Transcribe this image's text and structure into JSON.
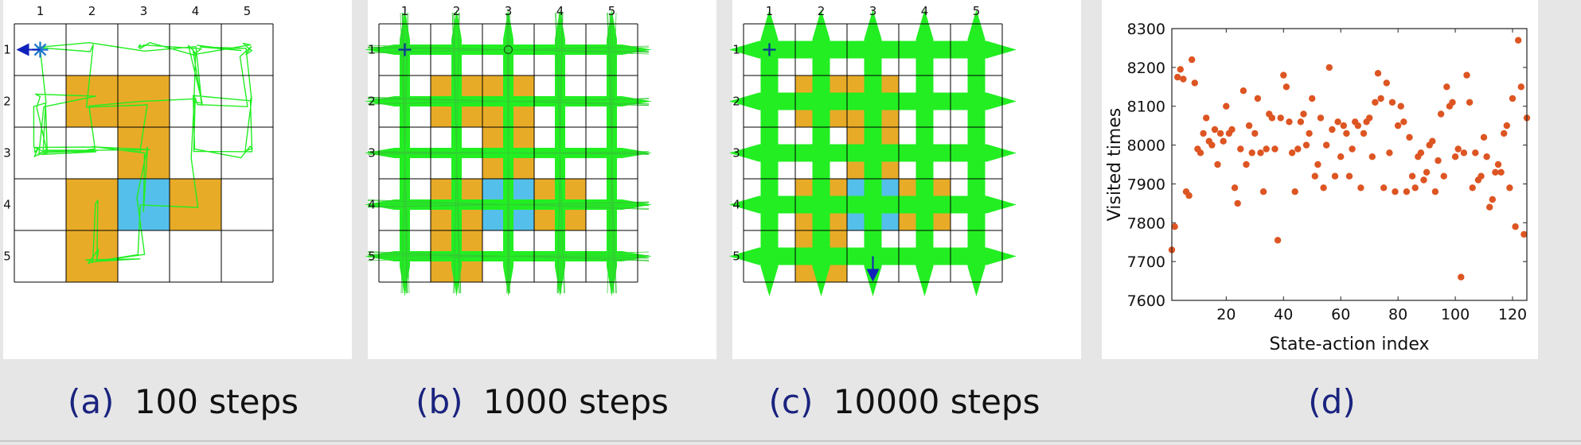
{
  "colors": {
    "page_bg": "#e6e6e6",
    "panel_bg": "#ffffff",
    "grid_line": "#000000",
    "forbidden_cell": "#e8ab27",
    "target_cell": "#55bfeb",
    "trajectory": "#22ee22",
    "marker": "#2277cc",
    "arrow": "#1122bb",
    "scatter_dot": "#dd5522",
    "caption_tag": "#1a237e",
    "caption_text": "#111111"
  },
  "grid": {
    "rows": 5,
    "cols": 5,
    "col_labels": [
      "1",
      "2",
      "3",
      "4",
      "5"
    ],
    "row_labels": [
      "1",
      "2",
      "3",
      "4",
      "5"
    ],
    "forbidden_cells": [
      [
        2,
        2
      ],
      [
        2,
        3
      ],
      [
        3,
        3
      ],
      [
        4,
        2
      ],
      [
        4,
        4
      ],
      [
        5,
        2
      ]
    ],
    "target_cells": [
      [
        4,
        3
      ]
    ]
  },
  "panels": [
    {
      "tag": "(a)",
      "label": "100 steps",
      "steps": 100,
      "start_cell": [
        1,
        1
      ],
      "start_marker": "asterisk-icon"
    },
    {
      "tag": "(b)",
      "label": "1000 steps",
      "steps": 1000,
      "start_cell": [
        1,
        1
      ],
      "start_marker": "plus-icon"
    },
    {
      "tag": "(c)",
      "label": "10000 steps",
      "steps": 10000,
      "start_cell": [
        1,
        1
      ],
      "start_marker": "plus-icon"
    },
    {
      "tag": "(d)",
      "label": ""
    }
  ],
  "chart_data": {
    "type": "scatter",
    "title": "",
    "xlabel": "State-action index",
    "ylabel": "Visited times",
    "xlim": [
      1,
      125
    ],
    "ylim": [
      7600,
      8300
    ],
    "xticks": [
      20,
      40,
      60,
      80,
      100,
      120
    ],
    "yticks": [
      7600,
      7700,
      7800,
      7900,
      8000,
      8100,
      8200,
      8300
    ],
    "grid": false,
    "legend": "none",
    "series": [
      {
        "x": [
          1,
          2,
          3,
          4,
          5,
          6,
          7,
          8,
          9,
          10,
          11,
          12,
          13,
          14,
          15,
          16,
          17,
          18,
          19,
          20,
          21,
          22,
          23,
          24,
          25,
          26,
          27,
          28,
          29,
          30,
          31,
          32,
          33,
          34,
          35,
          36,
          37,
          38,
          39,
          40,
          41,
          42,
          43,
          44,
          45,
          46,
          47,
          48,
          49,
          50,
          51,
          52,
          53,
          54,
          55,
          56,
          57,
          58,
          59,
          60,
          61,
          62,
          63,
          64,
          65,
          66,
          67,
          68,
          69,
          70,
          71,
          72,
          73,
          74,
          75,
          76,
          77,
          78,
          79,
          80,
          81,
          82,
          83,
          84,
          85,
          86,
          87,
          88,
          89,
          90,
          91,
          92,
          93,
          94,
          95,
          96,
          97,
          98,
          99,
          100,
          101,
          102,
          103,
          104,
          105,
          106,
          107,
          108,
          109,
          110,
          111,
          112,
          113,
          114,
          115,
          116,
          117,
          118,
          119,
          120,
          121,
          122,
          123,
          124,
          125
        ],
        "y": [
          7730,
          7790,
          8175,
          8195,
          8170,
          7880,
          7870,
          8220,
          8160,
          7990,
          7980,
          8030,
          8070,
          8010,
          8000,
          8040,
          7950,
          8030,
          8010,
          8100,
          8030,
          8040,
          7890,
          7850,
          7990,
          8140,
          7950,
          8050,
          7980,
          8030,
          8120,
          7980,
          7880,
          7990,
          8080,
          8070,
          7990,
          7755,
          8070,
          8180,
          8150,
          8060,
          7980,
          7880,
          7990,
          8060,
          8080,
          8000,
          8030,
          8120,
          7920,
          7950,
          8070,
          7890,
          8000,
          8200,
          8040,
          7920,
          8060,
          7970,
          8050,
          8030,
          7920,
          7990,
          8060,
          8050,
          7890,
          8030,
          8060,
          8070,
          7970,
          8110,
          8185,
          8120,
          7890,
          8160,
          7980,
          8110,
          7880,
          8050,
          8100,
          8060,
          7880,
          8020,
          7920,
          7890,
          7970,
          7980,
          7910,
          7930,
          8000,
          8010,
          7880,
          7960,
          8080,
          7920,
          8150,
          8100,
          8110,
          7970,
          7990,
          7660,
          7980,
          8180,
          8110,
          7890,
          7980,
          7910,
          7920,
          8020,
          7970,
          7840,
          7860,
          7930,
          7950,
          7930,
          8030,
          8050,
          7890,
          8120,
          7790,
          8270,
          8150,
          7770,
          8070
        ]
      }
    ]
  }
}
